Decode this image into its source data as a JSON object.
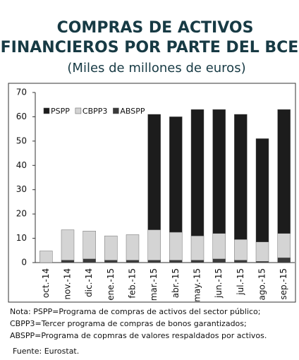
{
  "chart_data": {
    "type": "stacked_bar",
    "title": [
      "COMPRAS DE ACTIVOS",
      "FINANCIEROS POR PARTE DEL BCE"
    ],
    "subtitle": "(Miles de millones de euros)",
    "categories": [
      "oct.-14",
      "nov.-14",
      "dic.-14",
      "ene.-15",
      "feb.-15",
      "mar.-15",
      "abr.-15",
      "may.-15",
      "jun.-15",
      "jul.-15",
      "ago.-15",
      "sep.-15"
    ],
    "series": [
      {
        "name": "PSPP",
        "color": "#1c1c1c",
        "values": [
          0,
          0,
          0,
          0,
          0,
          47.5,
          47.5,
          52,
          51,
          51.5,
          42.5,
          51
        ]
      },
      {
        "name": "CBPP3",
        "color": "#d4d4d4",
        "values": [
          4.8,
          12.5,
          11.5,
          10,
          10.5,
          12.5,
          11.5,
          10,
          10.5,
          8.5,
          8,
          10
        ]
      },
      {
        "name": "ABSPP",
        "color": "#3a3a3a",
        "values": [
          0,
          1,
          1.5,
          1,
          1,
          1,
          1,
          1,
          1.5,
          1,
          0.5,
          2
        ]
      }
    ],
    "ylim": [
      0,
      70
    ],
    "yticks": [
      0,
      10,
      20,
      30,
      40,
      50,
      60,
      70
    ],
    "notes": [
      "Nota: PSPP=Programa de compras de activos del sector público;",
      "CBPP3=Tercer programa de compras de bonos garantizados;",
      "ABSPP=Programa de copmras de valores respaldados por activos."
    ],
    "source": "Fuente: Eurostat."
  }
}
